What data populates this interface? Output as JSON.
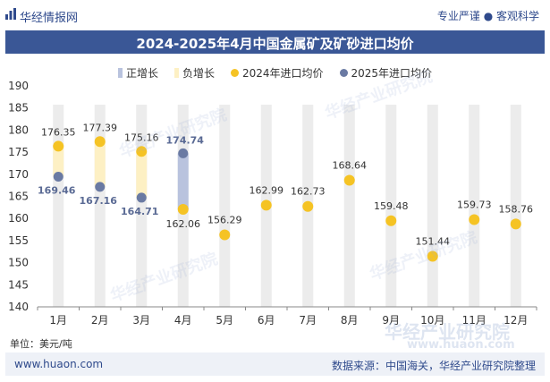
{
  "header": {
    "brand": "华经情报网",
    "tagline": "专业严谨 ● 客观科学",
    "brand_icon": "bar-chart-icon"
  },
  "watermark_text": "华经产业研究院",
  "bottom_watermark": "华经产业研究院",
  "bottom_watermark_url": "www.huaon.com",
  "footer": {
    "website": "www.huaon.com",
    "source": "数据来源：中国海关，华经产业研究院整理"
  },
  "unit_label": "单位：美元/吨",
  "colors": {
    "title_bar": "#3a5796",
    "increase": "#b9c3de",
    "decrease": "#fdf0c4",
    "series_2024": "#f5c324",
    "series_2025": "#6a7aa3",
    "band": "#ececec"
  },
  "chart_data": {
    "type": "scatter",
    "title": "2024-2025年4月中国金属矿及矿砂进口均价",
    "categories": [
      "1月",
      "2月",
      "3月",
      "4月",
      "5月",
      "6月",
      "7月",
      "8月",
      "9月",
      "10月",
      "11月",
      "12月"
    ],
    "ylim": [
      140,
      190
    ],
    "yticks": [
      140,
      145,
      150,
      155,
      160,
      165,
      170,
      175,
      180,
      185,
      190
    ],
    "legend": [
      "正增长",
      "负增长",
      "2024年进口均价",
      "2025年进口均价"
    ],
    "legend_position": "top",
    "series": [
      {
        "name": "2024年进口均价",
        "values": [
          176.35,
          177.39,
          175.16,
          162.06,
          156.29,
          162.99,
          162.73,
          168.64,
          159.48,
          151.44,
          159.73,
          158.76
        ],
        "labels": [
          "176.35",
          "177.39",
          "175.16",
          "162.06",
          "156.29",
          "162.99",
          "162.73",
          "168.64",
          "159.48",
          "151.44",
          "159.73",
          "158.76"
        ]
      },
      {
        "name": "2025年进口均价",
        "values": [
          169.46,
          167.16,
          164.71,
          174.74
        ],
        "labels": [
          "169.46",
          "167.16",
          "164.71",
          "174.74"
        ]
      }
    ],
    "changes": [
      {
        "month": "1月",
        "type": "负增长"
      },
      {
        "month": "2月",
        "type": "负增长"
      },
      {
        "month": "3月",
        "type": "负增长"
      },
      {
        "month": "4月",
        "type": "正增长"
      }
    ]
  }
}
